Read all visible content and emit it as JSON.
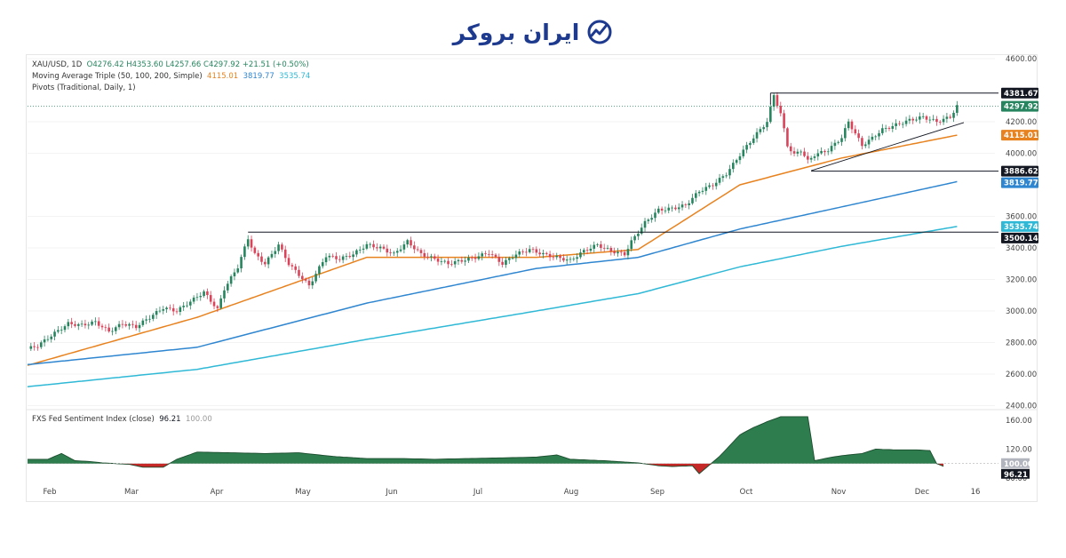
{
  "brand": {
    "name": "ایران بروکر",
    "logo_icon": "chart-check-logo-icon",
    "color": "#1d3a8f"
  },
  "legend": {
    "symbol": "XAU/USD, 1D",
    "ohlc": "O4276.42 H4353.60 L4257.66 C4297.92 +21.51 (+0.50%)",
    "ma_title": "Moving Average Triple (50, 100, 200, Simple)",
    "ma50": "4115.01",
    "ma100": "3819.77",
    "ma200": "3535.74",
    "pivots": "Pivots (Traditional, Daily, 1)"
  },
  "indicator": {
    "title": "FXS Fed Sentiment Index (close)",
    "value": "96.21",
    "baseline": "100.00"
  },
  "colors": {
    "up": "#26855f",
    "down": "#d9445a",
    "ma50": "#e8821e",
    "ma100": "#2f86d0",
    "ma200": "#2fb9d6",
    "fill_up": "#2e7d4f",
    "fill_down": "#c62828"
  },
  "chart_data": [
    {
      "type": "candlestick",
      "title": "XAU/USD, 1D",
      "x_ticks": [
        "Feb",
        "Mar",
        "Apr",
        "May",
        "Jun",
        "Jul",
        "Aug",
        "Sep",
        "Oct",
        "Nov",
        "Dec",
        "16"
      ],
      "y_ticks": [
        "4600.00",
        "4200.00",
        "4000.00",
        "3600.00",
        "3400.00",
        "3200.00",
        "3000.00",
        "2800.00",
        "2600.00",
        "2400.00"
      ],
      "ylim": [
        2300,
        4640
      ],
      "price_anchors": [
        [
          0,
          2760
        ],
        [
          3,
          2780
        ],
        [
          8,
          2860
        ],
        [
          12,
          2920
        ],
        [
          16,
          2910
        ],
        [
          20,
          2930
        ],
        [
          24,
          2870
        ],
        [
          28,
          2920
        ],
        [
          32,
          2900
        ],
        [
          36,
          2960
        ],
        [
          40,
          3020
        ],
        [
          44,
          3000
        ],
        [
          48,
          3060
        ],
        [
          52,
          3120
        ],
        [
          56,
          3010
        ],
        [
          58,
          3140
        ],
        [
          62,
          3280
        ],
        [
          65,
          3460
        ],
        [
          67,
          3360
        ],
        [
          70,
          3300
        ],
        [
          74,
          3420
        ],
        [
          77,
          3300
        ],
        [
          80,
          3230
        ],
        [
          83,
          3160
        ],
        [
          88,
          3350
        ],
        [
          92,
          3330
        ],
        [
          96,
          3360
        ],
        [
          100,
          3420
        ],
        [
          104,
          3400
        ],
        [
          108,
          3360
        ],
        [
          112,
          3440
        ],
        [
          116,
          3360
        ],
        [
          120,
          3330
        ],
        [
          124,
          3300
        ],
        [
          128,
          3320
        ],
        [
          132,
          3340
        ],
        [
          136,
          3370
        ],
        [
          140,
          3300
        ],
        [
          144,
          3360
        ],
        [
          148,
          3390
        ],
        [
          152,
          3360
        ],
        [
          156,
          3340
        ],
        [
          160,
          3320
        ],
        [
          164,
          3380
        ],
        [
          168,
          3420
        ],
        [
          172,
          3380
        ],
        [
          176,
          3360
        ],
        [
          178,
          3440
        ],
        [
          182,
          3560
        ],
        [
          186,
          3640
        ],
        [
          190,
          3650
        ],
        [
          194,
          3670
        ],
        [
          198,
          3760
        ],
        [
          202,
          3800
        ],
        [
          206,
          3870
        ],
        [
          210,
          3990
        ],
        [
          214,
          4100
        ],
        [
          218,
          4200
        ],
        [
          220,
          4370
        ],
        [
          222,
          4250
        ],
        [
          224,
          4050
        ],
        [
          226,
          3990
        ],
        [
          228,
          4020
        ],
        [
          230,
          3950
        ],
        [
          232,
          3990
        ],
        [
          236,
          4020
        ],
        [
          240,
          4100
        ],
        [
          242,
          4200
        ],
        [
          246,
          4050
        ],
        [
          248,
          4080
        ],
        [
          252,
          4150
        ],
        [
          256,
          4180
        ],
        [
          260,
          4210
        ],
        [
          264,
          4230
        ],
        [
          268,
          4200
        ],
        [
          272,
          4230
        ],
        [
          274,
          4298
        ]
      ],
      "moving_averages": [
        {
          "name": "MA 50",
          "anchors": [
            [
              0,
              2655
            ],
            [
              50,
              2960
            ],
            [
              100,
              3340
            ],
            [
              150,
              3340
            ],
            [
              180,
              3390
            ],
            [
              210,
              3800
            ],
            [
              240,
              3970
            ],
            [
              274,
              4115
            ]
          ]
        },
        {
          "name": "MA 100",
          "anchors": [
            [
              0,
              2660
            ],
            [
              50,
              2770
            ],
            [
              100,
              3050
            ],
            [
              150,
              3270
            ],
            [
              180,
              3340
            ],
            [
              210,
              3520
            ],
            [
              240,
              3660
            ],
            [
              274,
              3820
            ]
          ]
        },
        {
          "name": "MA 200",
          "anchors": [
            [
              0,
              2520
            ],
            [
              50,
              2630
            ],
            [
              100,
              2820
            ],
            [
              150,
              3000
            ],
            [
              180,
              3110
            ],
            [
              210,
              3280
            ],
            [
              240,
              3410
            ],
            [
              274,
              3536
            ]
          ]
        }
      ],
      "levels": [
        {
          "label": "4381.67",
          "value": 4381.67,
          "from_index": 219
        },
        {
          "label": "3886.62",
          "value": 3886.62,
          "from_index": 231
        },
        {
          "label": "3500.14",
          "value": 3500.14,
          "from_index": 0
        },
        {
          "label": "3535.74",
          "value": 3535.74,
          "from_index": null
        }
      ],
      "horizontal_from_may_high": {
        "value": 3500,
        "from_index": 65
      },
      "triangle": {
        "upper": {
          "value": 4381.67,
          "from": 219,
          "to": 274
        },
        "lower": [
          [
            231,
            3890
          ],
          [
            276,
            4195
          ]
        ]
      },
      "price_tags": [
        {
          "label": "4381.67",
          "value": 4381.67,
          "color": "#131722"
        },
        {
          "label": "4297.92",
          "value": 4297.92,
          "color": "#26855f"
        },
        {
          "label": "4115.01",
          "value": 4115.01,
          "color": "#e8821e"
        },
        {
          "label": "3886.62",
          "value": 3886.62,
          "color": "#131722"
        },
        {
          "label": "3819.77",
          "value": 3819.77,
          "color": "#2f86d0"
        },
        {
          "label": "3535.74",
          "value": 3535.74,
          "color": "#2fb9d6"
        },
        {
          "label": "3500.14",
          "value": 3500.14,
          "color": "#131722"
        }
      ]
    },
    {
      "type": "area",
      "title": "FXS Fed Sentiment Index (close)",
      "y_ticks": [
        "160.00",
        "120.00",
        "80.00"
      ],
      "ylim": [
        70,
        170
      ],
      "baseline": 100,
      "anchors": [
        [
          0,
          106
        ],
        [
          6,
          106
        ],
        [
          10,
          114
        ],
        [
          14,
          104
        ],
        [
          18,
          103
        ],
        [
          22,
          101
        ],
        [
          26,
          100
        ],
        [
          30,
          99
        ],
        [
          34,
          95
        ],
        [
          40,
          95
        ],
        [
          44,
          106
        ],
        [
          50,
          116
        ],
        [
          60,
          115
        ],
        [
          70,
          114
        ],
        [
          80,
          115
        ],
        [
          90,
          110
        ],
        [
          100,
          107
        ],
        [
          110,
          107
        ],
        [
          120,
          106
        ],
        [
          130,
          107
        ],
        [
          140,
          108
        ],
        [
          150,
          109
        ],
        [
          156,
          112
        ],
        [
          160,
          106
        ],
        [
          170,
          104
        ],
        [
          180,
          101
        ],
        [
          186,
          97
        ],
        [
          190,
          96
        ],
        [
          196,
          97
        ],
        [
          198,
          86
        ],
        [
          200,
          94
        ],
        [
          204,
          110
        ],
        [
          210,
          140
        ],
        [
          214,
          150
        ],
        [
          218,
          158
        ],
        [
          222,
          165
        ],
        [
          230,
          165
        ],
        [
          232,
          104
        ],
        [
          236,
          108
        ],
        [
          240,
          111
        ],
        [
          246,
          114
        ],
        [
          250,
          120
        ],
        [
          256,
          119
        ],
        [
          262,
          119
        ],
        [
          266,
          118
        ],
        [
          268,
          100
        ],
        [
          270,
          96.21
        ]
      ],
      "tags": [
        {
          "label": "100.00",
          "value": 100,
          "color": "#b2b5be"
        },
        {
          "label": "96.21",
          "value": 96.21,
          "color": "#131722"
        }
      ]
    }
  ]
}
